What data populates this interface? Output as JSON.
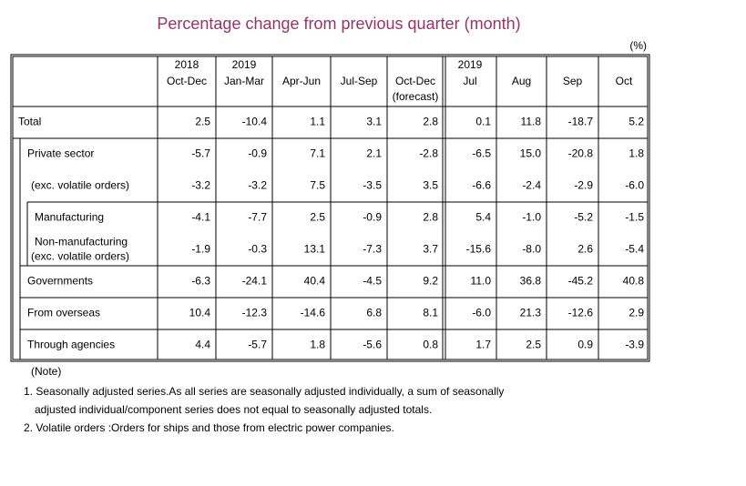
{
  "title": "Percentage change from previous quarter (month)",
  "unit": "(%)",
  "table": {
    "header": [
      [
        "2018",
        "Oct-Dec"
      ],
      [
        "2019",
        "Jan-Mar"
      ],
      [
        "Apr-Jun"
      ],
      [
        "Jul-Sep"
      ],
      [
        "Oct-Dec",
        "(forecast)"
      ],
      [
        "2019",
        "Jul"
      ],
      [
        "Aug"
      ],
      [
        "Sep"
      ],
      [
        "Oct"
      ]
    ],
    "rows": [
      {
        "label": [
          "Total"
        ],
        "values": [
          "2.5",
          "-10.4",
          "1.1",
          "3.1",
          "2.8",
          "0.1",
          "11.8",
          "-18.7",
          "5.2"
        ]
      },
      {
        "label": [
          "Private sector"
        ],
        "values": [
          "-5.7",
          "-0.9",
          "7.1",
          "2.1",
          "-2.8",
          "-6.5",
          "15.0",
          "-20.8",
          "1.8"
        ]
      },
      {
        "label": [
          "(exc. volatile orders)"
        ],
        "values": [
          "-3.2",
          "-3.2",
          "7.5",
          "-3.5",
          "3.5",
          "-6.6",
          "-2.4",
          "-2.9",
          "-6.0"
        ]
      },
      {
        "label": [
          "Manufacturing"
        ],
        "values": [
          "-4.1",
          "-7.7",
          "2.5",
          "-0.9",
          "2.8",
          "5.4",
          "-1.0",
          "-5.2",
          "-1.5"
        ]
      },
      {
        "label": [
          "Non-manufacturing",
          "(exc. volatile orders)"
        ],
        "values": [
          "-1.9",
          "-0.3",
          "13.1",
          "-7.3",
          "3.7",
          "-15.6",
          "-8.0",
          "2.6",
          "-5.4"
        ]
      },
      {
        "label": [
          "Governments"
        ],
        "values": [
          "-6.3",
          "-24.1",
          "40.4",
          "-4.5",
          "9.2",
          "11.0",
          "36.8",
          "-45.2",
          "40.8"
        ]
      },
      {
        "label": [
          "From overseas"
        ],
        "values": [
          "10.4",
          "-12.3",
          "-14.6",
          "6.8",
          "8.1",
          "-6.0",
          "21.3",
          "-12.6",
          "2.9"
        ]
      },
      {
        "label": [
          "Through agencies"
        ],
        "values": [
          "4.4",
          "-5.7",
          "1.8",
          "-5.6",
          "0.8",
          "1.7",
          "2.5",
          "0.9",
          "-3.9"
        ]
      }
    ]
  },
  "notes": {
    "heading": "(Note)",
    "lines": [
      "1. Seasonally adjusted series.As all series are seasonally adjusted individually,  a sum of seasonally",
      "adjusted individual/component series does not equal to seasonally adjusted totals.",
      "2. Volatile orders :Orders for ships and those from electric power companies."
    ]
  }
}
